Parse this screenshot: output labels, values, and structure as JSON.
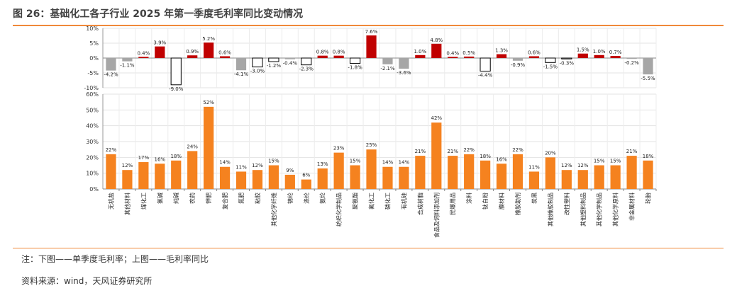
{
  "figure": {
    "title": "图 26：基础化工各子行业 2025 年第一季度毛利率同比变动情况",
    "note": "注：下图——单季度毛利率；上图——毛利率同比",
    "source": "资料来源：wind，天风证券研究所"
  },
  "colors": {
    "accent_rule": "#f0893a",
    "orange_bar": "#f5821f",
    "red_bar": "#c00000",
    "gray_bar": "#a6a6a6",
    "hollow_bar_stroke": "#000000"
  },
  "chart_data": [
    {
      "type": "bar",
      "name": "毛利率同比",
      "categories": [
        "无机盐",
        "其他材料",
        "煤化工",
        "氯碱",
        "纯碱",
        "农药",
        "钾肥",
        "复合肥",
        "氮肥",
        "粘胶",
        "其他化学纤维",
        "锦纶",
        "涤纶",
        "氨纶",
        "纺织化学制品",
        "聚氨酯",
        "氟化工",
        "磷化工",
        "有机硅",
        "合成树脂",
        "食品及饲料添加剂",
        "民爆用品",
        "涂料",
        "钛白粉",
        "膜材料",
        "橡胶助剂",
        "炭黑",
        "其他橡胶制品",
        "改性塑料",
        "其他塑料制品",
        "其他化学制品",
        "其他化学原料",
        "非金属材料",
        "轮胎"
      ],
      "values": [
        -4.2,
        -1.1,
        0.4,
        3.9,
        -9.0,
        0.9,
        5.2,
        0.6,
        -4.1,
        -3.0,
        -1.2,
        -0.4,
        -2.3,
        0.8,
        0.8,
        -1.8,
        7.6,
        -2.1,
        -3.6,
        1.0,
        4.8,
        0.4,
        0.5,
        -4.4,
        1.3,
        -0.9,
        0.6,
        -1.5,
        -0.3,
        1.5,
        1.0,
        0.7,
        -0.2,
        -5.5
      ],
      "labels": [
        "-4.2%",
        "-1.1%",
        "0.4%",
        "3.9%",
        "-9.0%",
        "0.9%",
        "5.2%",
        "0.6%",
        "-4.1%",
        "-3.0%",
        "-1.2%",
        "-0.4%",
        "-2.3%",
        "0.8%",
        "0.8%",
        "-1.8%",
        "7.6%",
        "-2.1%",
        "-3.6%",
        "1.0%",
        "4.8%",
        "0.4%",
        "0.5%",
        "-4.4%",
        "1.3%",
        "-0.9%",
        "0.6%",
        "-1.5%",
        "-0.3%",
        "1.5%",
        "1.0%",
        "0.7%",
        "-0.2%",
        "-5.5%"
      ],
      "styles": [
        "gray",
        "gray",
        "red",
        "red",
        "hollow",
        "red",
        "red",
        "red",
        "gray",
        "hollow",
        "hollow",
        "gray",
        "hollow",
        "red",
        "red",
        "hollow",
        "red",
        "gray",
        "gray",
        "red",
        "red",
        "red",
        "red",
        "hollow",
        "red",
        "gray",
        "red",
        "hollow",
        "hollow",
        "red",
        "red",
        "red",
        "gray",
        "gray"
      ],
      "ylim": [
        -10,
        10
      ],
      "yticks": [
        "10%",
        "5%",
        "0%",
        "-5%",
        "-10%"
      ],
      "grid": true
    },
    {
      "type": "bar",
      "name": "单季度毛利率",
      "categories": [
        "无机盐",
        "其他材料",
        "煤化工",
        "氯碱",
        "纯碱",
        "农药",
        "钾肥",
        "复合肥",
        "氮肥",
        "粘胶",
        "其他化学纤维",
        "锦纶",
        "涤纶",
        "氨纶",
        "纺织化学制品",
        "聚氨酯",
        "氟化工",
        "磷化工",
        "有机硅",
        "合成树脂",
        "食品及饲料添加剂",
        "民爆用品",
        "涂料",
        "钛白粉",
        "膜材料",
        "橡胶助剂",
        "炭黑",
        "其他橡胶制品",
        "改性塑料",
        "其他塑料制品",
        "其他化学制品",
        "其他化学原料",
        "非金属材料",
        "轮胎"
      ],
      "values": [
        22,
        12,
        17,
        16,
        18,
        24,
        52,
        14,
        11,
        12,
        15,
        9,
        6,
        13,
        23,
        15,
        25,
        14,
        14,
        21,
        42,
        21,
        22,
        18,
        16,
        22,
        11,
        20,
        12,
        12,
        15,
        15,
        21,
        18
      ],
      "labels": [
        "22%",
        "12%",
        "17%",
        "16%",
        "18%",
        "24%",
        "52%",
        "14%",
        "11%",
        "12%",
        "15%",
        "9%",
        "6%",
        "13%",
        "23%",
        "15%",
        "25%",
        "14%",
        "14%",
        "21%",
        "42%",
        "21%",
        "22%",
        "18%",
        "16%",
        "22%",
        "11%",
        "20%",
        "12%",
        "12%",
        "15%",
        "15%",
        "21%",
        "18%"
      ],
      "ylim": [
        0,
        60
      ],
      "yticks": [
        "60%",
        "50%",
        "40%",
        "30%",
        "20%",
        "10%",
        "0%"
      ],
      "grid": true
    }
  ]
}
